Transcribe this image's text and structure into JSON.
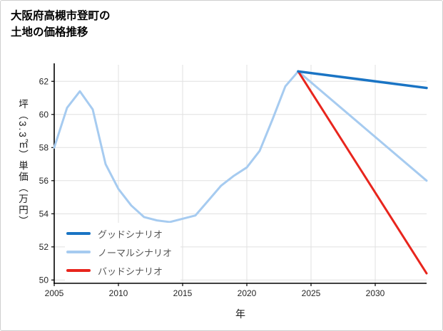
{
  "header": {
    "title_line1": "大阪府高槻市登町の",
    "title_line2": "土地の価格推移"
  },
  "chart_data": {
    "type": "line",
    "title": "大阪府高槻市登町の土地の価格推移",
    "xlabel": "年",
    "ylabel": "坪（3.3㎡）単価（万円）",
    "xlim": [
      2005,
      2034
    ],
    "ylim": [
      49.8,
      63.0
    ],
    "xticks": [
      2005,
      2010,
      2015,
      2020,
      2025,
      2030
    ],
    "yticks": [
      50,
      52,
      54,
      56,
      58,
      60,
      62
    ],
    "grid": true,
    "grid_color": "#e0e0e0",
    "axis_color": "#000000",
    "legend_position": "lower-left",
    "series": [
      {
        "name": "グッドシナリオ",
        "color": "#1a74c4",
        "width": 3.5,
        "z": 3,
        "x": [
          2024,
          2034
        ],
        "values": [
          62.6,
          61.6
        ]
      },
      {
        "name": "ノーマルシナリオ",
        "color": "#a6cbf0",
        "width": 3,
        "z": 1,
        "x": [
          2005,
          2006,
          2007,
          2008,
          2009,
          2010,
          2011,
          2012,
          2013,
          2014,
          2015,
          2016,
          2017,
          2018,
          2019,
          2020,
          2021,
          2022,
          2023,
          2024,
          2034
        ],
        "values": [
          58.0,
          60.4,
          61.4,
          60.3,
          57.0,
          55.5,
          54.5,
          53.8,
          53.6,
          53.5,
          53.7,
          53.9,
          54.8,
          55.7,
          56.3,
          56.8,
          57.8,
          59.7,
          61.7,
          62.6,
          56.0
        ]
      },
      {
        "name": "バッドシナリオ",
        "color": "#e8251d",
        "width": 3,
        "z": 2,
        "x": [
          2024,
          2034
        ],
        "values": [
          62.6,
          50.4
        ]
      }
    ]
  }
}
